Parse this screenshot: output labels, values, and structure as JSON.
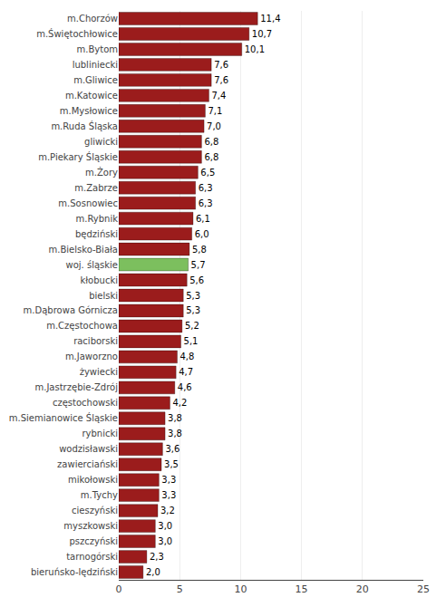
{
  "chart_data": {
    "type": "bar",
    "orientation": "horizontal",
    "categories": [
      "m.Chorzów",
      "m.Świętochłowice",
      "m.Bytom",
      "lubliniecki",
      "m.Gliwice",
      "m.Katowice",
      "m.Mysłowice",
      "m.Ruda Śląska",
      "gliwicki",
      "m.Piekary Śląskie",
      "m.Żory",
      "m.Zabrze",
      "m.Sosnowiec",
      "m.Rybnik",
      "będziński",
      "m.Bielsko-Biała",
      "woj. śląskie",
      "kłobucki",
      "bielski",
      "m.Dąbrowa Górnicza",
      "m.Częstochowa",
      "raciborski",
      "m.Jaworzno",
      "żywiecki",
      "m.Jastrzębie-Zdrój",
      "częstochowski",
      "m.Siemianowice Śląskie",
      "rybnicki",
      "wodzisławski",
      "zawierciański",
      "mikołowski",
      "m.Tychy",
      "cieszyński",
      "myszkowski",
      "pszczyński",
      "tarnogórski",
      "bieruńsko-lędziński"
    ],
    "values": [
      11.4,
      10.7,
      10.1,
      7.6,
      7.6,
      7.4,
      7.1,
      7.0,
      6.8,
      6.8,
      6.5,
      6.3,
      6.3,
      6.1,
      6.0,
      5.8,
      5.7,
      5.6,
      5.3,
      5.3,
      5.2,
      5.1,
      4.8,
      4.7,
      4.6,
      4.2,
      3.8,
      3.8,
      3.6,
      3.5,
      3.3,
      3.3,
      3.2,
      3.0,
      3.0,
      2.3,
      2.0
    ],
    "value_labels": [
      "11,4",
      "10,7",
      "10,1",
      "7,6",
      "7,6",
      "7,4",
      "7,1",
      "7,0",
      "6,8",
      "6,8",
      "6,5",
      "6,3",
      "6,3",
      "6,1",
      "6,0",
      "5,8",
      "5,7",
      "5,6",
      "5,3",
      "5,3",
      "5,2",
      "5,1",
      "4,8",
      "4,7",
      "4,6",
      "4,2",
      "3,8",
      "3,8",
      "3,6",
      "3,5",
      "3,3",
      "3,3",
      "3,2",
      "3,0",
      "3,0",
      "2,3",
      "2,0"
    ],
    "colors": [
      "#9B1C1C",
      "#9B1C1C",
      "#9B1C1C",
      "#9B1C1C",
      "#9B1C1C",
      "#9B1C1C",
      "#9B1C1C",
      "#9B1C1C",
      "#9B1C1C",
      "#9B1C1C",
      "#9B1C1C",
      "#9B1C1C",
      "#9B1C1C",
      "#9B1C1C",
      "#9B1C1C",
      "#9B1C1C",
      "#7CBF5E",
      "#9B1C1C",
      "#9B1C1C",
      "#9B1C1C",
      "#9B1C1C",
      "#9B1C1C",
      "#9B1C1C",
      "#9B1C1C",
      "#9B1C1C",
      "#9B1C1C",
      "#9B1C1C",
      "#9B1C1C",
      "#9B1C1C",
      "#9B1C1C",
      "#9B1C1C",
      "#9B1C1C",
      "#9B1C1C",
      "#9B1C1C",
      "#9B1C1C",
      "#9B1C1C",
      "#9B1C1C"
    ],
    "xlim": [
      0,
      25
    ],
    "xticks": [
      0,
      5,
      10,
      15,
      20,
      25
    ],
    "grid": true,
    "data_labels": true
  }
}
